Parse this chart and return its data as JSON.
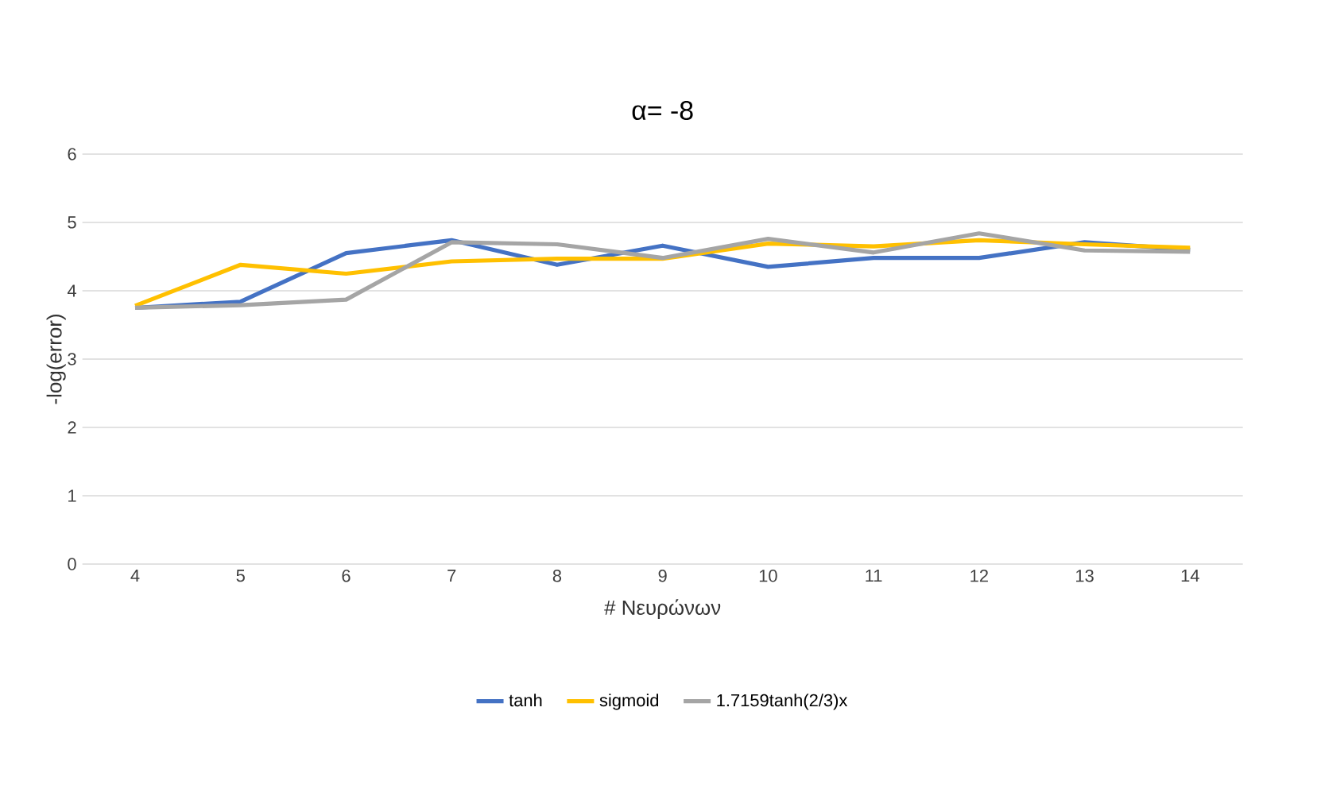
{
  "chart_data": {
    "type": "line",
    "title": "α= -8",
    "xlabel": "# Νευρώνων",
    "ylabel": "-log(error)",
    "categories": [
      "4",
      "5",
      "6",
      "7",
      "8",
      "9",
      "10",
      "11",
      "12",
      "13",
      "14"
    ],
    "series": [
      {
        "name": "tanh",
        "color": "#4472c4",
        "values": [
          3.75,
          3.84,
          4.55,
          4.74,
          4.38,
          4.66,
          4.35,
          4.48,
          4.48,
          4.71,
          4.6
        ]
      },
      {
        "name": "sigmoid",
        "color": "#ffc000",
        "values": [
          3.78,
          4.38,
          4.25,
          4.43,
          4.47,
          4.47,
          4.69,
          4.65,
          4.74,
          4.68,
          4.63
        ]
      },
      {
        "name": "1.7159tanh(2/3)x",
        "color": "#a5a5a5",
        "values": [
          3.75,
          3.79,
          3.87,
          4.71,
          4.68,
          4.48,
          4.76,
          4.56,
          4.84,
          4.59,
          4.57
        ]
      }
    ],
    "ylim": [
      0,
      6
    ],
    "yticks": [
      0,
      1,
      2,
      3,
      4,
      5,
      6
    ],
    "grid": "y",
    "legend": "bottom"
  }
}
